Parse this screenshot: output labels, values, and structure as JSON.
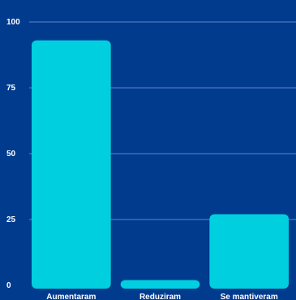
{
  "chart_data": {
    "type": "bar",
    "categories": [
      "Aumentaram",
      "Reduziram",
      "Se mantiveram"
    ],
    "values": [
      93,
      2,
      27
    ],
    "ylim": [
      0,
      100
    ],
    "yticks": [
      0,
      25,
      50,
      75,
      100
    ],
    "grid": true,
    "title": "",
    "xlabel": "",
    "ylabel": ""
  },
  "colors": {
    "background": "#003b8e",
    "bar": "#00cfe0",
    "grid": "#5f86c4",
    "text": "#ffffff"
  }
}
